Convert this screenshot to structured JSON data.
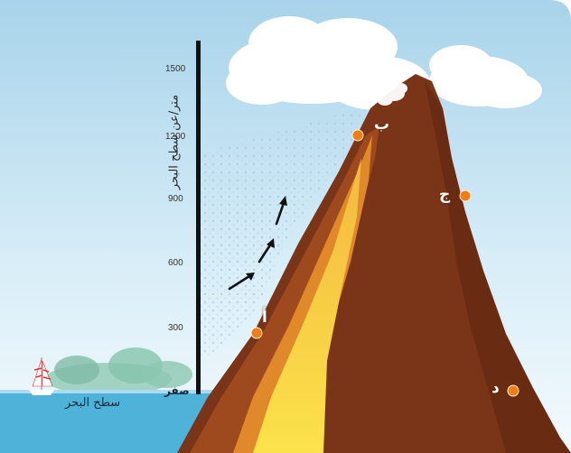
{
  "axis": {
    "title": "متر/عن سطح البحر",
    "ticks": [
      "1500",
      "1200",
      "900",
      "600",
      "300"
    ],
    "zero_label": "صفر"
  },
  "sea_label": "سطح البحر",
  "points": {
    "a": "أ",
    "b": "ب",
    "c": "ج",
    "d": "د"
  },
  "colors": {
    "sky_top": "#a8d3ea",
    "sky_bottom": "#f4fafd",
    "sea": "#4fb3d9",
    "mountain_dark": "#7a3418",
    "mountain_mid": "#9e4a1e",
    "lava_orange": "#e0892a",
    "lava_yellow": "#f6d23c",
    "point_marker": "#f07d1a"
  }
}
